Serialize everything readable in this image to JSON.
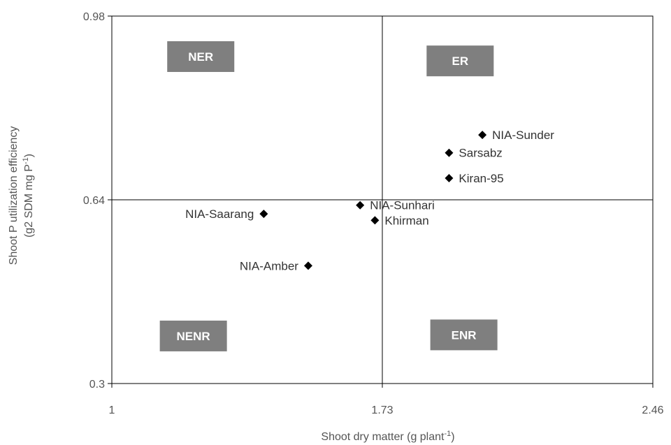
{
  "chart_data": {
    "type": "scatter",
    "title": "",
    "xlabel": "Shoot dry matter (g plant",
    "xlabel_sup": "-1",
    "xlabel_close": ")",
    "ylabel_line1": "Shoot P utilization efficiency",
    "ylabel_line2": "(g2 SDM mg P",
    "ylabel_line2_sup": "-1",
    "ylabel_line2_close": ")",
    "xlim": [
      1,
      2.46
    ],
    "ylim": [
      0.3,
      0.98
    ],
    "x_ticks": [
      1,
      1.73,
      2.46
    ],
    "x_tick_labels": [
      "1",
      "1.73",
      "2.46"
    ],
    "y_ticks": [
      0.3,
      0.64,
      0.98
    ],
    "y_tick_labels": [
      "0.3",
      "0.64",
      "0.98"
    ],
    "divider_x": 1.73,
    "divider_y": 0.64,
    "marker_color": "#000000",
    "quadrant_box_color": "#7f7f7f",
    "points": [
      {
        "name": "NIA-Sunder",
        "x": 2.0,
        "y": 0.76,
        "label_side": "right"
      },
      {
        "name": "Sarsabz",
        "x": 1.91,
        "y": 0.727,
        "label_side": "right"
      },
      {
        "name": "Kiran-95",
        "x": 1.91,
        "y": 0.68,
        "label_side": "right"
      },
      {
        "name": "NIA-Sunhari",
        "x": 1.67,
        "y": 0.63,
        "label_side": "right"
      },
      {
        "name": "Khirman",
        "x": 1.71,
        "y": 0.602,
        "label_side": "right"
      },
      {
        "name": "NIA-Saarang",
        "x": 1.41,
        "y": 0.614,
        "label_side": "left"
      },
      {
        "name": "NIA-Amber",
        "x": 1.53,
        "y": 0.518,
        "label_side": "left"
      }
    ],
    "quadrant_labels": [
      {
        "text": "NER",
        "x": 1.24,
        "y": 0.905
      },
      {
        "text": "ER",
        "x": 1.94,
        "y": 0.897
      },
      {
        "text": "NENR",
        "x": 1.22,
        "y": 0.388
      },
      {
        "text": "ENR",
        "x": 1.95,
        "y": 0.39
      }
    ]
  }
}
